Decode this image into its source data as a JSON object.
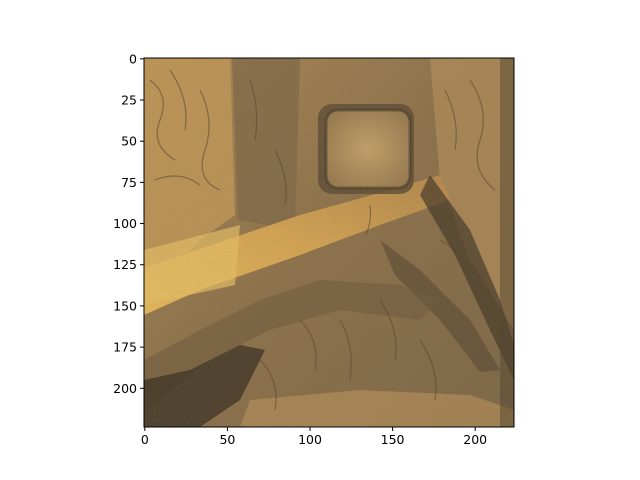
{
  "figure": {
    "description_visible": "texture image displayed on axes with pixel ticks",
    "image_palette": {
      "dark": "#2d2418",
      "shadow": "#6b5636",
      "mid": "#9a7a4a",
      "light": "#c9a25e",
      "highlight": "#f0c25a",
      "pale": "#d8c3a0"
    }
  },
  "axes": {
    "x_ticks": [
      "0",
      "50",
      "100",
      "150",
      "200"
    ],
    "y_ticks": [
      "0",
      "25",
      "50",
      "75",
      "100",
      "125",
      "150",
      "175",
      "200"
    ],
    "x_tick_values": [
      0,
      50,
      100,
      150,
      200
    ],
    "y_tick_values": [
      0,
      25,
      50,
      75,
      100,
      125,
      150,
      175,
      200
    ],
    "x_range": [
      0,
      224
    ],
    "y_range": [
      0,
      224
    ],
    "grid": false,
    "frame_color": "#000000"
  }
}
